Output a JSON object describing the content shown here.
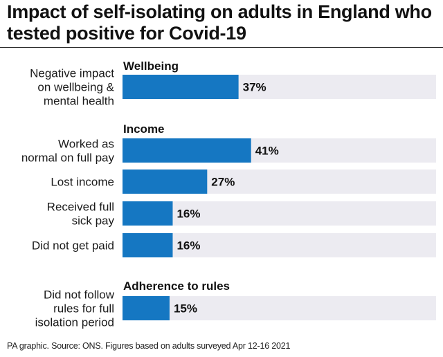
{
  "title": "Impact of self-isolating on adults in England who tested positive for Covid-19",
  "footer": "PA graphic. Source: ONS. Figures based on adults surveyed Apr 12-16 2021",
  "colors": {
    "bar": "#1577c2",
    "track": "#ecebf1",
    "text": "#111111"
  },
  "chart_data": {
    "type": "bar",
    "orientation": "horizontal",
    "unit": "%",
    "xlim": [
      0,
      100
    ],
    "grid": false,
    "legend": "none",
    "sections": [
      {
        "name": "Wellbeing",
        "bars": [
          {
            "label": [
              "Negative impact",
              "on wellbeing &",
              "mental health"
            ],
            "value": 37,
            "value_label": "37%"
          }
        ]
      },
      {
        "name": "Income",
        "bars": [
          {
            "label": [
              "Worked as",
              "normal on full pay"
            ],
            "value": 41,
            "value_label": "41%"
          },
          {
            "label": [
              "Lost income"
            ],
            "value": 27,
            "value_label": "27%"
          },
          {
            "label": [
              "Received full",
              "sick pay"
            ],
            "value": 16,
            "value_label": "16%"
          },
          {
            "label": [
              "Did not get paid"
            ],
            "value": 16,
            "value_label": "16%"
          }
        ]
      },
      {
        "name": "Adherence to rules",
        "bars": [
          {
            "label": [
              "Did not follow",
              "rules for full",
              "isolation period"
            ],
            "value": 15,
            "value_label": "15%"
          }
        ]
      }
    ]
  }
}
